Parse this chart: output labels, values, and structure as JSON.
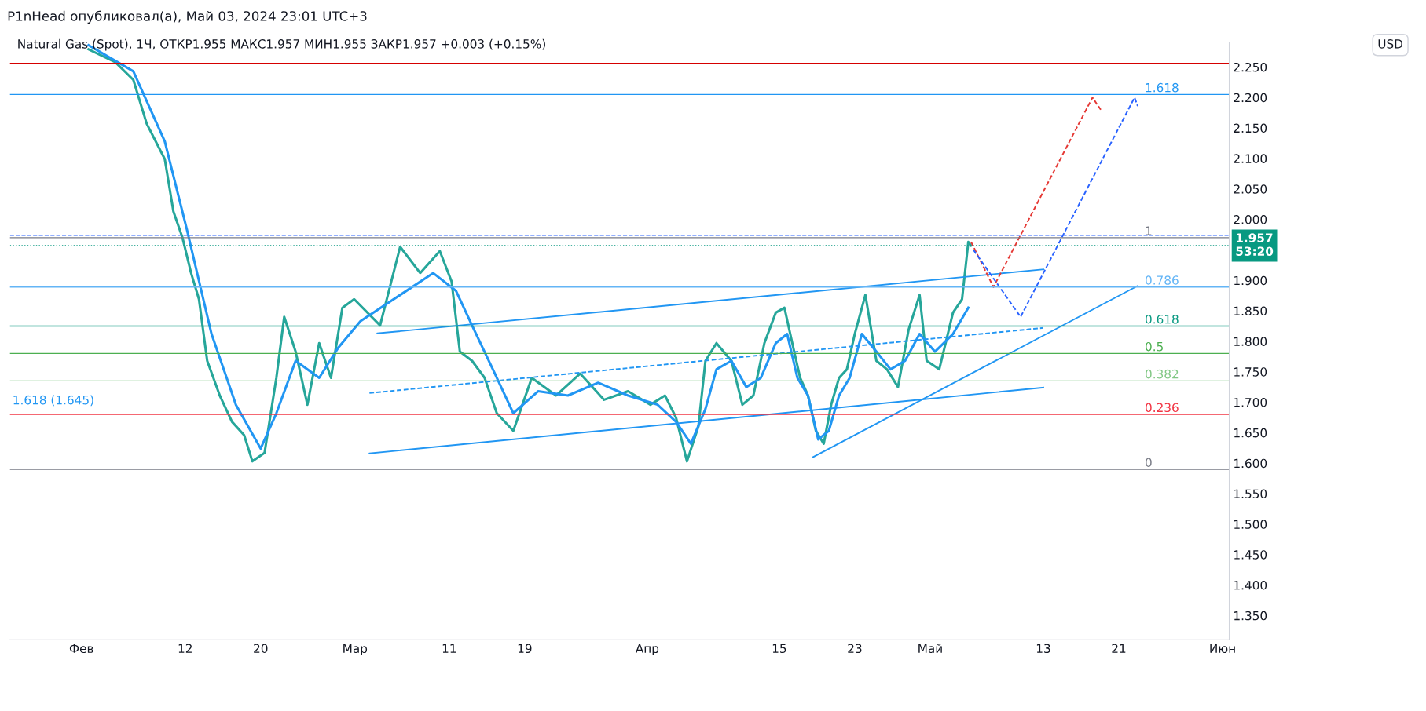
{
  "chart_data": {
    "type": "line",
    "title": "P1nHead опубликовал(а), Май 03, 2024 23:01 UTC+3",
    "subtitle": "Natural Gas (Spot), 1Ч, ОТКР1.955 МАКС1.957 МИН1.955 ЗАКР1.957 +0.003 (+0.15%)",
    "xlim": [
      "2024-01-24T10:00",
      "2024-06-01T17:00"
    ],
    "ylim": [
      1.31,
      2.29
    ],
    "xticks": [
      {
        "value": "2024-02-01",
        "label": "Фев"
      },
      {
        "value": "2024-02-12",
        "label": "12"
      },
      {
        "value": "2024-02-20",
        "label": "20"
      },
      {
        "value": "2024-03-01",
        "label": "Мар"
      },
      {
        "value": "2024-03-11",
        "label": "11"
      },
      {
        "value": "2024-03-19",
        "label": "19"
      },
      {
        "value": "2024-04-01",
        "label": "Апр"
      },
      {
        "value": "2024-04-15",
        "label": "15"
      },
      {
        "value": "2024-04-23",
        "label": "23"
      },
      {
        "value": "2024-05-01",
        "label": "Май"
      },
      {
        "value": "2024-05-13",
        "label": "13"
      },
      {
        "value": "2024-05-21",
        "label": "21"
      },
      {
        "value": "2024-06-01",
        "label": "Июн"
      }
    ],
    "yticks": [
      {
        "value": 1.35,
        "label": "1.350"
      },
      {
        "value": 1.4,
        "label": "1.400"
      },
      {
        "value": 1.45,
        "label": "1.450"
      },
      {
        "value": 1.5,
        "label": "1.500"
      },
      {
        "value": 1.55,
        "label": "1.550"
      },
      {
        "value": 1.6,
        "label": "1.600"
      },
      {
        "value": 1.65,
        "label": "1.650"
      },
      {
        "value": 1.7,
        "label": "1.700"
      },
      {
        "value": 1.75,
        "label": "1.750"
      },
      {
        "value": 1.8,
        "label": "1.800"
      },
      {
        "value": 1.85,
        "label": "1.850"
      },
      {
        "value": 1.9,
        "label": "1.900"
      },
      {
        "value": 2.0,
        "label": "2.000"
      },
      {
        "value": 2.05,
        "label": "2.050"
      },
      {
        "value": 2.1,
        "label": "2.100"
      },
      {
        "value": 2.15,
        "label": "2.150"
      },
      {
        "value": 2.2,
        "label": "2.200"
      },
      {
        "value": 2.25,
        "label": "2.250"
      }
    ],
    "grid": false,
    "legend": false,
    "marker": "none",
    "series": [
      {
        "color": "#26a69a",
        "line_style": "solid",
        "x": [
          "2024-02-01T18:00",
          "2024-02-04T14:00",
          "2024-02-06T12:00",
          "2024-02-07T22:00",
          "2024-02-09T20:00",
          "2024-02-10T18:00",
          "2024-02-11T17:00",
          "2024-02-12T15:00",
          "2024-02-13T11:00",
          "2024-02-14T08:00",
          "2024-02-15T16:00",
          "2024-02-16T23:00",
          "2024-02-18T06:00",
          "2024-02-19T03:00",
          "2024-02-20T10:00",
          "2024-02-21T16:00",
          "2024-02-22T12:00",
          "2024-02-23T17:00",
          "2024-02-24T23:00",
          "2024-02-26T05:00",
          "2024-02-27T11:00",
          "2024-02-28T16:00",
          "2024-02-29T22:00",
          "2024-03-03T16:00",
          "2024-03-05T19:00",
          "2024-03-07T22:00",
          "2024-03-10T00:00",
          "2024-03-11T06:00",
          "2024-03-12T03:00",
          "2024-03-13T10:00",
          "2024-03-14T18:00",
          "2024-03-16T01:00",
          "2024-03-17T19:00",
          "2024-03-19T18:00",
          "2024-03-22T08:00",
          "2024-03-24T21:00",
          "2024-03-27T10:00",
          "2024-03-29T23:00",
          "2024-04-01T08:00",
          "2024-04-02T21:00",
          "2024-04-04T01:00",
          "2024-04-05T05:00",
          "2024-04-06T10:00",
          "2024-04-07T04:00",
          "2024-04-08T08:00",
          "2024-04-09T22:00",
          "2024-04-11T02:00",
          "2024-04-12T06:00",
          "2024-04-13T10:00",
          "2024-04-14T15:00",
          "2024-04-15T13:00",
          "2024-04-16T09:00",
          "2024-04-17T05:00",
          "2024-04-18T01:00",
          "2024-04-18T21:00",
          "2024-04-19T17:00",
          "2024-04-20T12:00",
          "2024-04-21T08:00",
          "2024-04-22T04:00",
          "2024-04-23T00:00",
          "2024-04-24T03:00",
          "2024-04-25T07:00",
          "2024-04-26T10:00",
          "2024-04-27T14:00",
          "2024-04-28T17:00",
          "2024-04-29T21:00",
          "2024-04-30T15:00",
          "2024-05-01T23:00",
          "2024-05-03T10:00",
          "2024-05-04T09:00",
          "2024-05-05T01:00",
          "2024-05-05T08:00"
        ],
        "values": [
          2.279,
          2.258,
          2.229,
          2.157,
          2.099,
          2.013,
          1.97,
          1.912,
          1.869,
          1.768,
          1.711,
          1.668,
          1.646,
          1.603,
          1.617,
          1.74,
          1.84,
          1.783,
          1.696,
          1.797,
          1.74,
          1.855,
          1.869,
          1.826,
          1.955,
          1.912,
          1.948,
          1.898,
          1.783,
          1.768,
          1.74,
          1.682,
          1.653,
          1.74,
          1.711,
          1.747,
          1.704,
          1.718,
          1.696,
          1.711,
          1.675,
          1.603,
          1.66,
          1.768,
          1.797,
          1.768,
          1.696,
          1.711,
          1.797,
          1.847,
          1.855,
          1.797,
          1.74,
          1.711,
          1.653,
          1.632,
          1.696,
          1.74,
          1.754,
          1.812,
          1.876,
          1.768,
          1.754,
          1.725,
          1.819,
          1.876,
          1.768,
          1.754,
          1.847,
          1.869,
          1.963,
          1.957
        ]
      },
      {
        "color": "#2196f3",
        "line_style": "solid",
        "x": [
          "2024-02-01T18:00",
          "2024-02-06T12:00",
          "2024-02-09T20:00",
          "2024-02-12T04:00",
          "2024-02-14T19:00",
          "2024-02-17T09:00",
          "2024-02-20T00:00",
          "2024-02-21T16:00",
          "2024-02-23T17:00",
          "2024-02-26T05:00",
          "2024-02-28T06:00",
          "2024-03-01T14:00",
          "2024-03-05T19:00",
          "2024-03-09T07:00",
          "2024-03-11T17:00",
          "2024-03-13T10:00",
          "2024-03-15T15:00",
          "2024-03-17T19:00",
          "2024-03-20T10:00",
          "2024-03-23T14:00",
          "2024-03-26T19:00",
          "2024-03-29T23:00",
          "2024-04-02T02:00",
          "2024-04-04T01:00",
          "2024-04-05T15:00",
          "2024-04-07T04:00",
          "2024-04-08T08:00",
          "2024-04-09T22:00",
          "2024-04-11T12:00",
          "2024-04-13T01:00",
          "2024-04-14T15:00",
          "2024-04-15T20:00",
          "2024-04-16T22:00",
          "2024-04-18T01:00",
          "2024-04-19T03:00",
          "2024-04-20T06:00",
          "2024-04-21T08:00",
          "2024-04-22T11:00",
          "2024-04-23T18:00",
          "2024-04-25T07:00",
          "2024-04-26T19:00",
          "2024-04-28T08:00",
          "2024-04-29T21:00",
          "2024-05-01T12:00",
          "2024-05-03T10:00",
          "2024-05-05T01:00"
        ],
        "values": [
          2.286,
          2.243,
          2.128,
          1.984,
          1.812,
          1.696,
          1.624,
          1.682,
          1.768,
          1.74,
          1.79,
          1.833,
          1.876,
          1.912,
          1.883,
          1.826,
          1.754,
          1.682,
          1.718,
          1.711,
          1.732,
          1.711,
          1.696,
          1.668,
          1.632,
          1.689,
          1.754,
          1.768,
          1.725,
          1.74,
          1.797,
          1.812,
          1.74,
          1.711,
          1.639,
          1.653,
          1.711,
          1.74,
          1.812,
          1.783,
          1.754,
          1.768,
          1.812,
          1.783,
          1.812,
          1.855
        ]
      },
      {
        "color": "#2196f3",
        "line_style": "solid",
        "x": [
          "2024-03-02T13:00",
          "2024-05-13T00:00"
        ],
        "values": [
          1.616,
          1.724
        ]
      },
      {
        "color": "#2196f3",
        "line_style": "solid",
        "x": [
          "2024-03-03T09:00",
          "2024-05-13T00:00"
        ],
        "values": [
          1.813,
          1.918
        ]
      },
      {
        "color": "#2196f3",
        "line_style": "dashed",
        "x": [
          "2024-03-02T13:00",
          "2024-05-13T00:00"
        ],
        "values": [
          1.715,
          1.822
        ]
      },
      {
        "color": "#2196f3",
        "line_style": "solid",
        "x": [
          "2024-04-18T14:00",
          "2024-05-23T00:00"
        ],
        "values": [
          1.61,
          1.891
        ]
      },
      {
        "color": "#e53935",
        "line_style": "dashed",
        "x": [
          "2024-05-05T08:00",
          "2024-05-07T17:00",
          "2024-05-18T05:00",
          "2024-05-19T02:00"
        ],
        "values": [
          1.963,
          1.889,
          2.2,
          2.18
        ]
      },
      {
        "color": "#2962ff",
        "line_style": "dashed",
        "x": [
          "2024-05-05T14:00",
          "2024-05-10T14:00",
          "2024-05-22T16:00",
          "2024-05-23T00:00"
        ],
        "values": [
          1.95,
          1.84,
          2.2,
          2.186
        ]
      }
    ],
    "ref_lines": [
      {
        "axis": "y",
        "value": 1.59,
        "color": "#787b86",
        "line_style": "solid"
      },
      {
        "axis": "y",
        "value": 1.68,
        "color": "#f23645",
        "line_style": "solid"
      },
      {
        "axis": "y",
        "value": 1.735,
        "color": "#81c784",
        "line_style": "solid"
      },
      {
        "axis": "y",
        "value": 1.78,
        "color": "#4caf50",
        "line_style": "solid"
      },
      {
        "axis": "y",
        "value": 1.825,
        "color": "#089981",
        "line_style": "solid"
      },
      {
        "axis": "y",
        "value": 1.889,
        "color": "#64b5f6",
        "line_style": "solid"
      },
      {
        "axis": "y",
        "value": 1.97,
        "color": "#787b86",
        "line_style": "solid"
      },
      {
        "axis": "y",
        "value": 2.205,
        "color": "#2196f3",
        "line_style": "solid"
      },
      {
        "axis": "y",
        "value": 2.256,
        "color": "#d50000",
        "line_style": "solid"
      },
      {
        "axis": "y",
        "value": 1.974,
        "color": "#2962ff",
        "line_style": "dashed"
      },
      {
        "axis": "y",
        "value": 1.957,
        "label": "1.957\n53:20",
        "color": "#089981",
        "line_style": "dotted"
      }
    ],
    "annotations": [
      "1.618 (1.645)",
      "USD",
      {
        "text": "0",
        "x": "2024-05-23T18:00",
        "y": 1.59
      },
      {
        "text": "0.236",
        "x": "2024-05-23T18:00",
        "y": 1.68
      },
      {
        "text": "0.382",
        "x": "2024-05-23T18:00",
        "y": 1.735
      },
      {
        "text": "0.5",
        "x": "2024-05-23T18:00",
        "y": 1.78
      },
      {
        "text": "0.618",
        "x": "2024-05-23T18:00",
        "y": 1.825
      },
      {
        "text": "0.786",
        "x": "2024-05-23T18:00",
        "y": 1.889
      },
      {
        "text": "1",
        "x": "2024-05-23T18:00",
        "y": 1.97
      },
      {
        "text": "1.618",
        "x": "2024-05-23T18:00",
        "y": 2.205
      }
    ]
  }
}
